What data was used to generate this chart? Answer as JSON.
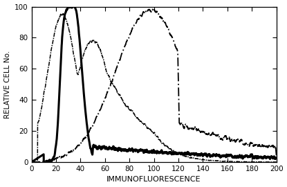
{
  "title": "",
  "xlabel": "IMMUNOFLUORESCENCE",
  "ylabel": "RELATIVE CELL No.",
  "xlim": [
    0,
    200
  ],
  "ylim": [
    0,
    100
  ],
  "xticks": [
    0,
    20,
    40,
    60,
    80,
    100,
    120,
    140,
    160,
    180,
    200
  ],
  "yticks": [
    0,
    20,
    40,
    60,
    80,
    100
  ],
  "background_color": "#ffffff",
  "line1_color": "#000000",
  "line1_lw": 2.2,
  "line2_color": "#000000",
  "line2_lw": 1.1,
  "line3_color": "#000000",
  "line3_lw": 1.3,
  "xlabel_fontsize": 8,
  "ylabel_fontsize": 7.5,
  "tick_fontsize": 7.5
}
